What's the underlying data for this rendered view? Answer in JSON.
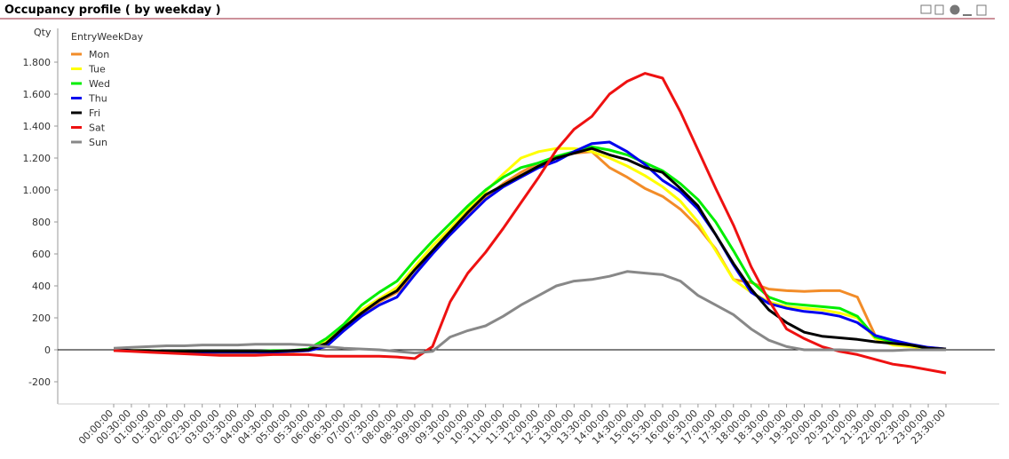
{
  "chart_data": {
    "type": "line",
    "title": "Occupancy profile ( by weekday )",
    "y_label": "Qty",
    "legend_title": "EntryWeekDay",
    "legend_position": "top-left",
    "categories": [
      "00:00:00",
      "00:30:00",
      "01:00:00",
      "01:30:00",
      "02:00:00",
      "02:30:00",
      "03:00:00",
      "03:30:00",
      "04:00:00",
      "04:30:00",
      "05:00:00",
      "05:30:00",
      "06:00:00",
      "06:30:00",
      "07:00:00",
      "07:30:00",
      "08:00:00",
      "08:30:00",
      "09:00:00",
      "09:30:00",
      "10:00:00",
      "10:30:00",
      "11:00:00",
      "11:30:00",
      "12:00:00",
      "12:30:00",
      "13:00:00",
      "13:30:00",
      "14:00:00",
      "14:30:00",
      "15:00:00",
      "15:30:00",
      "16:00:00",
      "16:30:00",
      "17:00:00",
      "17:30:00",
      "18:00:00",
      "18:30:00",
      "19:00:00",
      "19:30:00",
      "20:00:00",
      "20:30:00",
      "21:00:00",
      "21:30:00",
      "22:00:00",
      "22:30:00",
      "23:00:00",
      "23:30:00"
    ],
    "series": [
      {
        "name": "Mon",
        "color": "#f28c28",
        "values": [
          0,
          -5,
          -10,
          -15,
          -20,
          -25,
          -25,
          -25,
          -25,
          -20,
          -15,
          -5,
          30,
          120,
          220,
          300,
          360,
          470,
          610,
          720,
          840,
          950,
          1040,
          1110,
          1170,
          1200,
          1230,
          1240,
          1140,
          1080,
          1010,
          960,
          880,
          770,
          630,
          440,
          420,
          380,
          370,
          365,
          370,
          370,
          330,
          90,
          50,
          30,
          15,
          5
        ]
      },
      {
        "name": "Tue",
        "color": "#ffff00",
        "values": [
          0,
          -5,
          -5,
          -10,
          -10,
          -15,
          -15,
          -15,
          -15,
          -10,
          -10,
          0,
          50,
          140,
          250,
          320,
          390,
          520,
          650,
          760,
          880,
          990,
          1100,
          1200,
          1240,
          1260,
          1260,
          1240,
          1200,
          1150,
          1090,
          1020,
          930,
          800,
          620,
          440,
          360,
          300,
          270,
          260,
          250,
          230,
          200,
          70,
          30,
          20,
          10,
          5
        ]
      },
      {
        "name": "Wed",
        "color": "#00ee00",
        "values": [
          0,
          -5,
          -5,
          -10,
          -10,
          -10,
          -10,
          -10,
          -10,
          -5,
          -5,
          5,
          70,
          160,
          280,
          360,
          430,
          560,
          680,
          790,
          900,
          1000,
          1080,
          1140,
          1170,
          1210,
          1240,
          1270,
          1250,
          1220,
          1170,
          1120,
          1040,
          940,
          800,
          620,
          430,
          330,
          290,
          280,
          270,
          260,
          210,
          80,
          50,
          30,
          10,
          5
        ]
      },
      {
        "name": "Thu",
        "color": "#0000ee",
        "values": [
          0,
          -5,
          -10,
          -10,
          -15,
          -15,
          -15,
          -15,
          -15,
          -15,
          -10,
          -5,
          20,
          120,
          210,
          280,
          330,
          470,
          600,
          720,
          830,
          940,
          1020,
          1080,
          1140,
          1180,
          1240,
          1290,
          1300,
          1240,
          1160,
          1060,
          990,
          880,
          720,
          530,
          360,
          290,
          260,
          240,
          230,
          210,
          170,
          90,
          60,
          35,
          15,
          5
        ]
      },
      {
        "name": "Fri",
        "color": "#000000",
        "values": [
          0,
          -5,
          -5,
          -10,
          -10,
          -10,
          -10,
          -10,
          -10,
          -10,
          -5,
          0,
          40,
          140,
          230,
          310,
          370,
          500,
          620,
          740,
          860,
          970,
          1030,
          1090,
          1150,
          1200,
          1230,
          1260,
          1220,
          1190,
          1140,
          1110,
          1010,
          900,
          720,
          540,
          380,
          250,
          170,
          110,
          85,
          75,
          65,
          50,
          40,
          30,
          10,
          5
        ]
      },
      {
        "name": "Sat",
        "color": "#ee1111",
        "values": [
          -5,
          -10,
          -15,
          -20,
          -25,
          -30,
          -35,
          -35,
          -35,
          -30,
          -30,
          -30,
          -40,
          -40,
          -40,
          -40,
          -45,
          -55,
          20,
          300,
          480,
          610,
          760,
          920,
          1080,
          1250,
          1380,
          1460,
          1600,
          1680,
          1730,
          1700,
          1490,
          1250,
          1010,
          780,
          520,
          310,
          130,
          70,
          20,
          -10,
          -30,
          -60,
          -90,
          -105,
          -125,
          -145
        ]
      },
      {
        "name": "Sun",
        "color": "#888888",
        "values": [
          10,
          15,
          20,
          25,
          25,
          30,
          30,
          30,
          35,
          35,
          35,
          30,
          20,
          10,
          5,
          0,
          -10,
          -20,
          -10,
          80,
          120,
          150,
          210,
          280,
          340,
          400,
          430,
          440,
          460,
          490,
          480,
          470,
          430,
          340,
          280,
          220,
          130,
          60,
          20,
          0,
          0,
          0,
          -5,
          -5,
          -5,
          0,
          0,
          0
        ]
      }
    ],
    "ylim": [
      -340,
      2010
    ],
    "yticks": [
      -200,
      0,
      200,
      400,
      600,
      800,
      {
        "value": 1000,
        "label": "1.000"
      },
      {
        "value": 1200,
        "label": "1.200"
      },
      {
        "value": 1400,
        "label": "1.400"
      },
      {
        "value": 1600,
        "label": "1.600"
      },
      {
        "value": 1800,
        "label": "1.800"
      }
    ],
    "grid": false
  }
}
